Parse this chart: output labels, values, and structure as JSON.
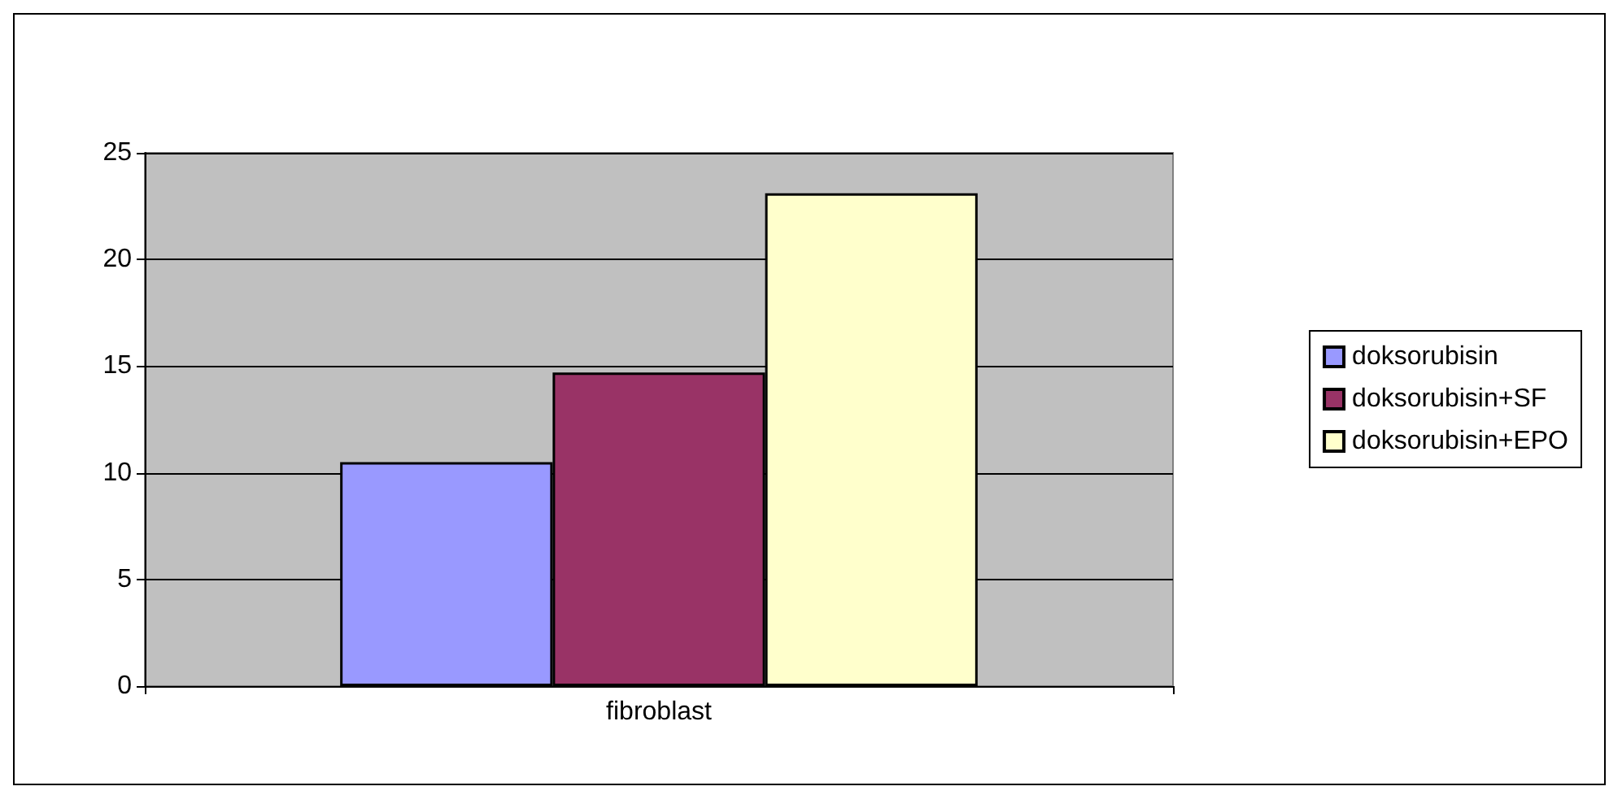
{
  "chart_data": {
    "type": "bar",
    "categories": [
      "fibroblast"
    ],
    "series": [
      {
        "name": "doksorubisin",
        "color": "#9999ff",
        "values": [
          10.5
        ]
      },
      {
        "name": "doksorubisin+SF",
        "color": "#993366",
        "values": [
          14.7
        ]
      },
      {
        "name": "doksorubisin+EPO",
        "color": "#ffffcc",
        "values": [
          23.1
        ]
      }
    ],
    "ylim": [
      0,
      25
    ],
    "yticks": [
      0,
      5,
      10,
      15,
      20,
      25
    ],
    "grid": "y",
    "legend": "right"
  }
}
